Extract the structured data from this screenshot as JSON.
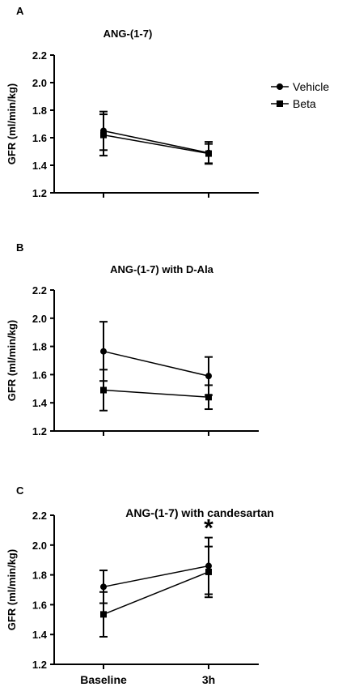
{
  "legend": {
    "items": [
      {
        "label": "Vehicle",
        "marker": "circle"
      },
      {
        "label": "Beta",
        "marker": "square"
      }
    ]
  },
  "chart_data": [
    {
      "type": "line",
      "panel_letter": "A",
      "title": "ANG-(1-7)",
      "ylabel": "GFR (ml/min/kg)",
      "xlabel": "",
      "categories": [
        "Baseline",
        "3h"
      ],
      "show_category_labels": false,
      "ylim": [
        1.2,
        2.2
      ],
      "yticks": [
        "1.2",
        "1.4",
        "1.6",
        "1.8",
        "2.0",
        "2.2"
      ],
      "grid": false,
      "series": [
        {
          "name": "Vehicle",
          "marker": "circle",
          "values": [
            1.65,
            1.49
          ],
          "errors": [
            0.14,
            0.08
          ]
        },
        {
          "name": "Beta",
          "marker": "square",
          "values": [
            1.62,
            1.485
          ],
          "errors": [
            0.15,
            0.07
          ]
        }
      ],
      "annotations": []
    },
    {
      "type": "line",
      "panel_letter": "B",
      "title": "ANG-(1-7) with D-Ala",
      "ylabel": "GFR (ml/min/kg)",
      "xlabel": "",
      "categories": [
        "Baseline",
        "3h"
      ],
      "show_category_labels": false,
      "ylim": [
        1.2,
        2.2
      ],
      "yticks": [
        "1.2",
        "1.4",
        "1.6",
        "1.8",
        "2.0",
        "2.2"
      ],
      "grid": false,
      "series": [
        {
          "name": "Vehicle",
          "marker": "circle",
          "values": [
            1.765,
            1.59
          ],
          "errors": [
            0.21,
            0.135
          ]
        },
        {
          "name": "Beta",
          "marker": "square",
          "values": [
            1.49,
            1.44
          ],
          "errors": [
            0.145,
            0.085
          ]
        }
      ],
      "annotations": []
    },
    {
      "type": "line",
      "panel_letter": "C",
      "title": "ANG-(1-7) with candesartan",
      "ylabel": "GFR (ml/min/kg)",
      "xlabel": "",
      "categories": [
        "Baseline",
        "3h"
      ],
      "show_category_labels": true,
      "ylim": [
        1.2,
        2.2
      ],
      "yticks": [
        "1.2",
        "1.4",
        "1.6",
        "1.8",
        "2.0",
        "2.2"
      ],
      "grid": false,
      "series": [
        {
          "name": "Vehicle",
          "marker": "circle",
          "values": [
            1.72,
            1.86
          ],
          "errors": [
            0.11,
            0.19
          ]
        },
        {
          "name": "Beta",
          "marker": "square",
          "values": [
            1.535,
            1.82
          ],
          "errors": [
            0.15,
            0.17
          ]
        }
      ],
      "annotations": [
        {
          "text": "*",
          "category": "3h"
        }
      ]
    }
  ]
}
